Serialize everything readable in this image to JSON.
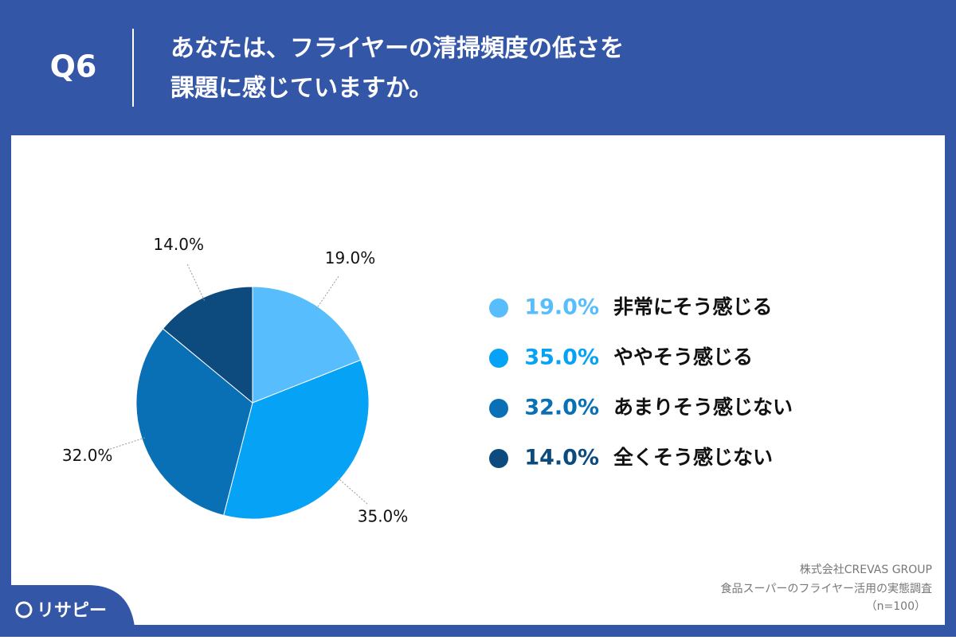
{
  "question_number": "Q6",
  "chart_data": {
    "type": "pie",
    "title": [
      "あなたは、フライヤーの清掃頻度の低さを",
      "課題に感じていますか。"
    ],
    "categories": [
      "非常にそう感じる",
      "ややそう感じる",
      "あまりそう感じない",
      "全くそう感じない"
    ],
    "values": [
      19,
      35,
      32,
      14
    ],
    "value_labels": [
      "19.0%",
      "35.0%",
      "32.0%",
      "14.0%"
    ],
    "colors": [
      "#57bdfc",
      "#06a2f6",
      "#0a70b5",
      "#0d4a7d"
    ]
  },
  "source": [
    "株式会社CREVAS GROUP",
    "食品スーパーのフライヤー活用の実態調査",
    "（n=100）"
  ],
  "logo": "リサピー"
}
